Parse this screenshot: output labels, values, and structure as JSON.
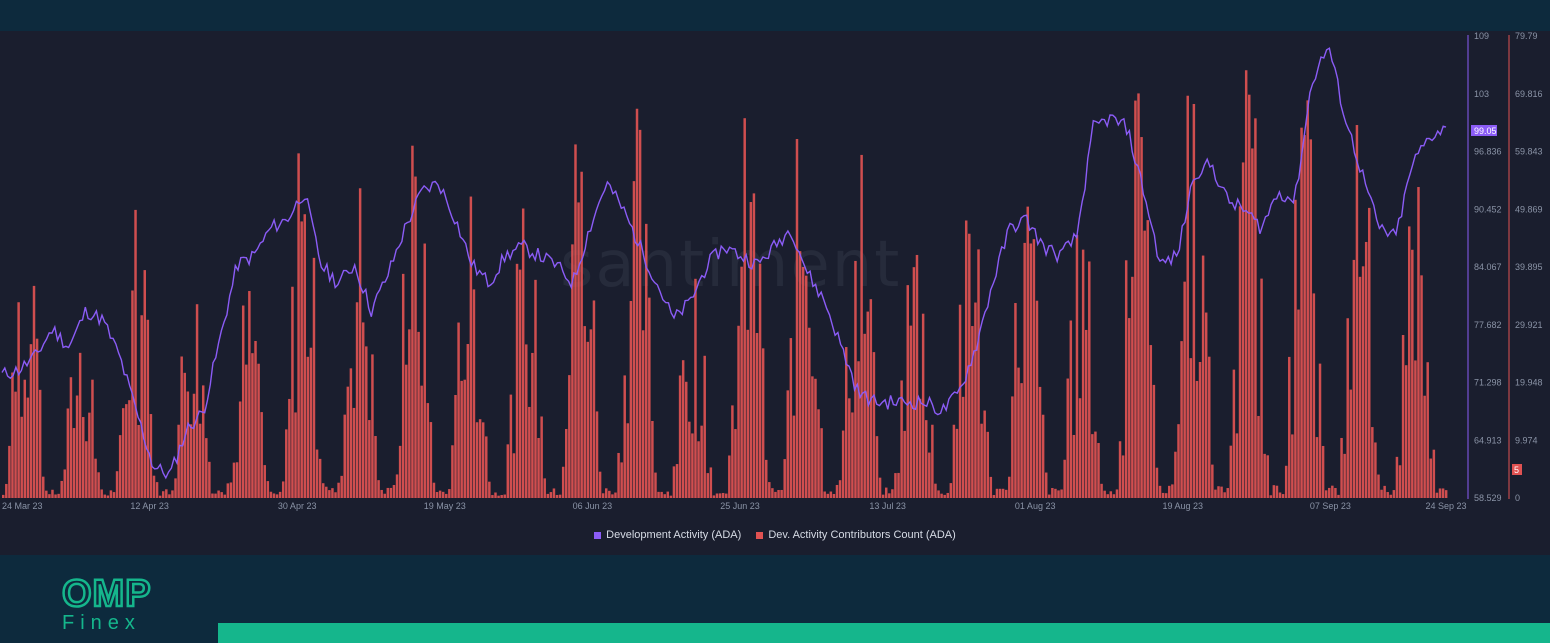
{
  "chart_data": {
    "type": "line+bar",
    "watermark": "santiment",
    "x_ticks": [
      "24 Mar 23",
      "12 Apr 23",
      "30 Apr 23",
      "19 May 23",
      "06 Jun 23",
      "25 Jun 23",
      "13 Jul 23",
      "01 Aug 23",
      "19 Aug 23",
      "07 Sep 23",
      "24 Sep 23"
    ],
    "y_left": {
      "ticks": [
        "109",
        "103",
        "96.836",
        "90.452",
        "84.067",
        "77.682",
        "71.298",
        "64.913",
        "58.529"
      ],
      "range": [
        58.529,
        109
      ]
    },
    "y_right": {
      "ticks": [
        "79.79",
        "69.816",
        "59.843",
        "49.869",
        "39.895",
        "29.921",
        "19.948",
        "9.974",
        "0"
      ],
      "range": [
        0,
        79.79
      ]
    },
    "last_values": {
      "line": "99.05",
      "bars": "5"
    },
    "series": [
      {
        "name": "Development Activity (ADA)",
        "color": "#8b5cf6",
        "anchors": [
          [
            0,
            72
          ],
          [
            1,
            72.5
          ],
          [
            2,
            74
          ],
          [
            3,
            77
          ],
          [
            4,
            75
          ],
          [
            5,
            79
          ],
          [
            6,
            78
          ],
          [
            7,
            74
          ],
          [
            8,
            68
          ],
          [
            9,
            62
          ],
          [
            10,
            61
          ],
          [
            11,
            66
          ],
          [
            12,
            68
          ],
          [
            13,
            76
          ],
          [
            14,
            84
          ],
          [
            15,
            85
          ],
          [
            16,
            88
          ],
          [
            17,
            89
          ],
          [
            18,
            92
          ],
          [
            19,
            84
          ],
          [
            20,
            82
          ],
          [
            21,
            84
          ],
          [
            22,
            79
          ],
          [
            23,
            83
          ],
          [
            24,
            88
          ],
          [
            25,
            92
          ],
          [
            26,
            93
          ],
          [
            27,
            89
          ],
          [
            28,
            84
          ],
          [
            29,
            82
          ],
          [
            30,
            85
          ],
          [
            31,
            86
          ],
          [
            32,
            85
          ],
          [
            33,
            84
          ],
          [
            34,
            82
          ],
          [
            35,
            88
          ],
          [
            36,
            93
          ],
          [
            37,
            90
          ],
          [
            38,
            86
          ],
          [
            39,
            82
          ],
          [
            40,
            78
          ],
          [
            41,
            80
          ],
          [
            42,
            84
          ],
          [
            43,
            86
          ],
          [
            44,
            85
          ],
          [
            45,
            84
          ],
          [
            46,
            86
          ],
          [
            47,
            88
          ],
          [
            48,
            83
          ],
          [
            49,
            80
          ],
          [
            50,
            75
          ],
          [
            51,
            70
          ],
          [
            52,
            69
          ],
          [
            53,
            69
          ],
          [
            54,
            69
          ],
          [
            55,
            69
          ],
          [
            56,
            68
          ],
          [
            57,
            70
          ],
          [
            58,
            75
          ],
          [
            59,
            82
          ],
          [
            60,
            88
          ],
          [
            61,
            89
          ],
          [
            62,
            86
          ],
          [
            63,
            85
          ],
          [
            64,
            87
          ],
          [
            65,
            99
          ],
          [
            66,
            100
          ],
          [
            67,
            99
          ],
          [
            68,
            92
          ],
          [
            69,
            84
          ],
          [
            70,
            85
          ],
          [
            71,
            94
          ],
          [
            72,
            95
          ],
          [
            73,
            91
          ],
          [
            74,
            90
          ],
          [
            75,
            88
          ],
          [
            76,
            92
          ],
          [
            77,
            91
          ],
          [
            78,
            104
          ],
          [
            79,
            108
          ],
          [
            80,
            100
          ],
          [
            81,
            94
          ],
          [
            82,
            88
          ],
          [
            83,
            87
          ],
          [
            84,
            95
          ],
          [
            85,
            98
          ],
          [
            86,
            99.05
          ]
        ]
      },
      {
        "name": "Dev. Activity Contributors Count (ADA)",
        "color": "#e05252",
        "peaks": [
          48,
          34,
          50,
          43,
          36,
          65,
          58,
          66,
          53,
          55,
          70,
          69,
          43,
          69,
          75,
          60,
          53,
          53,
          61,
          51,
          70,
          78,
          76,
          71,
          73,
          55
        ]
      }
    ]
  }
}
